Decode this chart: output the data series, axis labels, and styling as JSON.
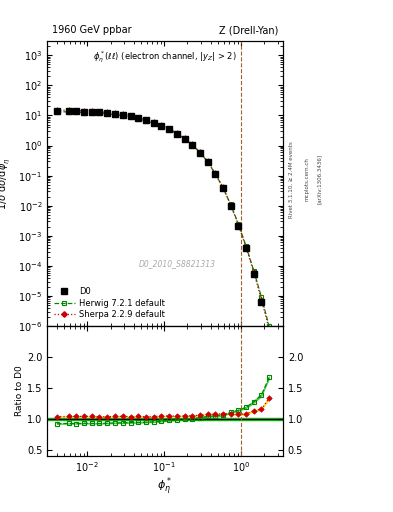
{
  "title_left": "1960 GeV ppbar",
  "title_right": "Z (Drell-Yan)",
  "annotation": "#phi_{#eta}*(ll) (electron channel, |y_{Z}| > 2)",
  "watermark": "D0_2010_S8821313",
  "ylabel_main": "1/#sigma;d#sigma/d#phi_{#eta}*",
  "ylabel_ratio": "Ratio to D0",
  "xlabel": "#phi_{#eta}*",
  "d0_x": [
    0.004,
    0.0057,
    0.0072,
    0.009,
    0.0114,
    0.0143,
    0.018,
    0.023,
    0.029,
    0.037,
    0.046,
    0.058,
    0.073,
    0.092,
    0.116,
    0.146,
    0.184,
    0.231,
    0.291,
    0.366,
    0.461,
    0.58,
    0.73,
    0.92,
    1.16,
    1.46,
    1.84,
    2.31
  ],
  "d0_y": [
    14.5,
    14.3,
    14.0,
    13.5,
    13.2,
    12.8,
    12.2,
    11.5,
    10.5,
    9.5,
    8.2,
    7.0,
    5.8,
    4.6,
    3.5,
    2.5,
    1.7,
    1.05,
    0.58,
    0.28,
    0.11,
    0.038,
    0.01,
    0.0022,
    0.00038,
    5.5e-05,
    6.5e-06,
    6e-07
  ],
  "d0_yerr": [
    0.4,
    0.4,
    0.4,
    0.35,
    0.35,
    0.35,
    0.3,
    0.3,
    0.28,
    0.25,
    0.22,
    0.2,
    0.17,
    0.14,
    0.11,
    0.08,
    0.06,
    0.04,
    0.025,
    0.013,
    0.006,
    0.002,
    0.0007,
    0.00018,
    3.5e-05,
    6e-06,
    8e-07,
    1e-07
  ],
  "herwig_x": [
    0.004,
    0.0057,
    0.0072,
    0.009,
    0.0114,
    0.0143,
    0.018,
    0.023,
    0.029,
    0.037,
    0.046,
    0.058,
    0.073,
    0.092,
    0.116,
    0.146,
    0.184,
    0.231,
    0.291,
    0.366,
    0.461,
    0.58,
    0.73,
    0.92,
    1.16,
    1.46,
    1.84,
    2.31
  ],
  "herwig_y": [
    13.3,
    13.2,
    12.9,
    12.5,
    12.2,
    11.8,
    11.3,
    10.7,
    9.8,
    8.9,
    7.7,
    6.6,
    5.5,
    4.4,
    3.4,
    2.45,
    1.68,
    1.05,
    0.59,
    0.29,
    0.115,
    0.04,
    0.011,
    0.0025,
    0.00045,
    7e-05,
    9e-06,
    1e-06
  ],
  "sherpa_x": [
    0.004,
    0.0057,
    0.0072,
    0.009,
    0.0114,
    0.0143,
    0.018,
    0.023,
    0.029,
    0.037,
    0.046,
    0.058,
    0.073,
    0.092,
    0.116,
    0.146,
    0.184,
    0.231,
    0.291,
    0.366,
    0.461,
    0.58,
    0.73,
    0.92,
    1.16,
    1.46,
    1.84,
    2.31
  ],
  "sherpa_y": [
    15.0,
    14.8,
    14.5,
    14.0,
    13.7,
    13.2,
    12.6,
    11.9,
    10.9,
    9.8,
    8.5,
    7.2,
    6.0,
    4.8,
    3.65,
    2.6,
    1.78,
    1.1,
    0.61,
    0.3,
    0.118,
    0.041,
    0.0108,
    0.00235,
    0.00041,
    6.2e-05,
    7.5e-06,
    8e-07
  ],
  "herwig_ratio_x": [
    0.004,
    0.0057,
    0.0072,
    0.009,
    0.0114,
    0.0143,
    0.018,
    0.023,
    0.029,
    0.037,
    0.046,
    0.058,
    0.073,
    0.092,
    0.116,
    0.146,
    0.184,
    0.231,
    0.291,
    0.366,
    0.461,
    0.58,
    0.73,
    0.92,
    1.16,
    1.46,
    1.84,
    2.31
  ],
  "herwig_ratio_y": [
    0.917,
    0.923,
    0.921,
    0.926,
    0.924,
    0.922,
    0.926,
    0.93,
    0.933,
    0.937,
    0.939,
    0.943,
    0.948,
    0.957,
    0.971,
    0.98,
    0.988,
    1.0,
    1.017,
    1.036,
    1.045,
    1.053,
    1.1,
    1.136,
    1.184,
    1.273,
    1.385,
    1.667
  ],
  "sherpa_ratio_x": [
    0.004,
    0.0057,
    0.0072,
    0.009,
    0.0114,
    0.0143,
    0.018,
    0.023,
    0.029,
    0.037,
    0.046,
    0.058,
    0.073,
    0.092,
    0.116,
    0.146,
    0.184,
    0.231,
    0.291,
    0.366,
    0.461,
    0.58,
    0.73,
    0.92,
    1.16,
    1.46,
    1.84,
    2.31
  ],
  "sherpa_ratio_y": [
    1.034,
    1.035,
    1.036,
    1.037,
    1.038,
    1.031,
    1.033,
    1.035,
    1.038,
    1.032,
    1.037,
    1.029,
    1.034,
    1.043,
    1.043,
    1.04,
    1.047,
    1.048,
    1.052,
    1.071,
    1.073,
    1.079,
    1.08,
    1.068,
    1.079,
    1.127,
    1.154,
    1.333
  ],
  "herwig_band_x": [
    0.004,
    0.0057,
    0.0072,
    0.009,
    0.0114,
    0.0143,
    0.018,
    0.023,
    0.029,
    0.037,
    0.046,
    0.058,
    0.073,
    0.092,
    0.116,
    0.146,
    0.184,
    0.231,
    0.291,
    0.366,
    0.461,
    0.58,
    0.73,
    0.92,
    1.16,
    1.46,
    1.84,
    2.31
  ],
  "herwig_band_lo": [
    0.907,
    0.91,
    0.91,
    0.912,
    0.912,
    0.91,
    0.913,
    0.917,
    0.92,
    0.924,
    0.926,
    0.93,
    0.935,
    0.944,
    0.958,
    0.967,
    0.975,
    0.987,
    1.004,
    1.022,
    1.03,
    1.038,
    1.084,
    1.118,
    1.162,
    1.248,
    1.354,
    1.63
  ],
  "herwig_band_hi": [
    0.927,
    0.936,
    0.932,
    0.94,
    0.936,
    0.934,
    0.939,
    0.943,
    0.946,
    0.95,
    0.952,
    0.956,
    0.961,
    0.97,
    0.984,
    0.993,
    1.001,
    1.013,
    1.03,
    1.05,
    1.06,
    1.068,
    1.116,
    1.154,
    1.206,
    1.298,
    1.416,
    1.704
  ],
  "sherpa_band_x": [
    0.004,
    0.0057,
    0.0072,
    0.009,
    0.0114,
    0.0143,
    0.018,
    0.023,
    0.029,
    0.037,
    0.046,
    0.058,
    0.073,
    0.092,
    0.116,
    0.146,
    0.184,
    0.231,
    0.291,
    0.366,
    0.461,
    0.58,
    0.73,
    0.92,
    1.16,
    1.46,
    1.84,
    2.31
  ],
  "sherpa_band_lo": [
    1.024,
    1.025,
    1.026,
    1.027,
    1.028,
    1.021,
    1.023,
    1.025,
    1.028,
    1.022,
    1.027,
    1.019,
    1.024,
    1.033,
    1.033,
    1.03,
    1.037,
    1.038,
    1.042,
    1.06,
    1.062,
    1.068,
    1.068,
    1.054,
    1.063,
    1.109,
    1.135,
    1.307
  ],
  "sherpa_band_hi": [
    1.044,
    1.045,
    1.046,
    1.047,
    1.048,
    1.041,
    1.043,
    1.045,
    1.048,
    1.042,
    1.047,
    1.039,
    1.044,
    1.053,
    1.053,
    1.05,
    1.057,
    1.058,
    1.062,
    1.082,
    1.084,
    1.09,
    1.092,
    1.082,
    1.095,
    1.145,
    1.173,
    1.359
  ],
  "colors": {
    "d0": "#000000",
    "herwig": "#008800",
    "sherpa": "#cc0000",
    "herwig_band": "#00bb00",
    "sherpa_band": "#ffdd00",
    "ratio_line": "#000000"
  },
  "xlim": [
    0.003,
    3.5
  ],
  "ylim_main": [
    1e-06,
    3000.0
  ],
  "ylim_ratio": [
    0.4,
    2.5
  ],
  "ratio_yticks": [
    0.5,
    1.0,
    1.5,
    2.0
  ],
  "vline_x": 1.0
}
